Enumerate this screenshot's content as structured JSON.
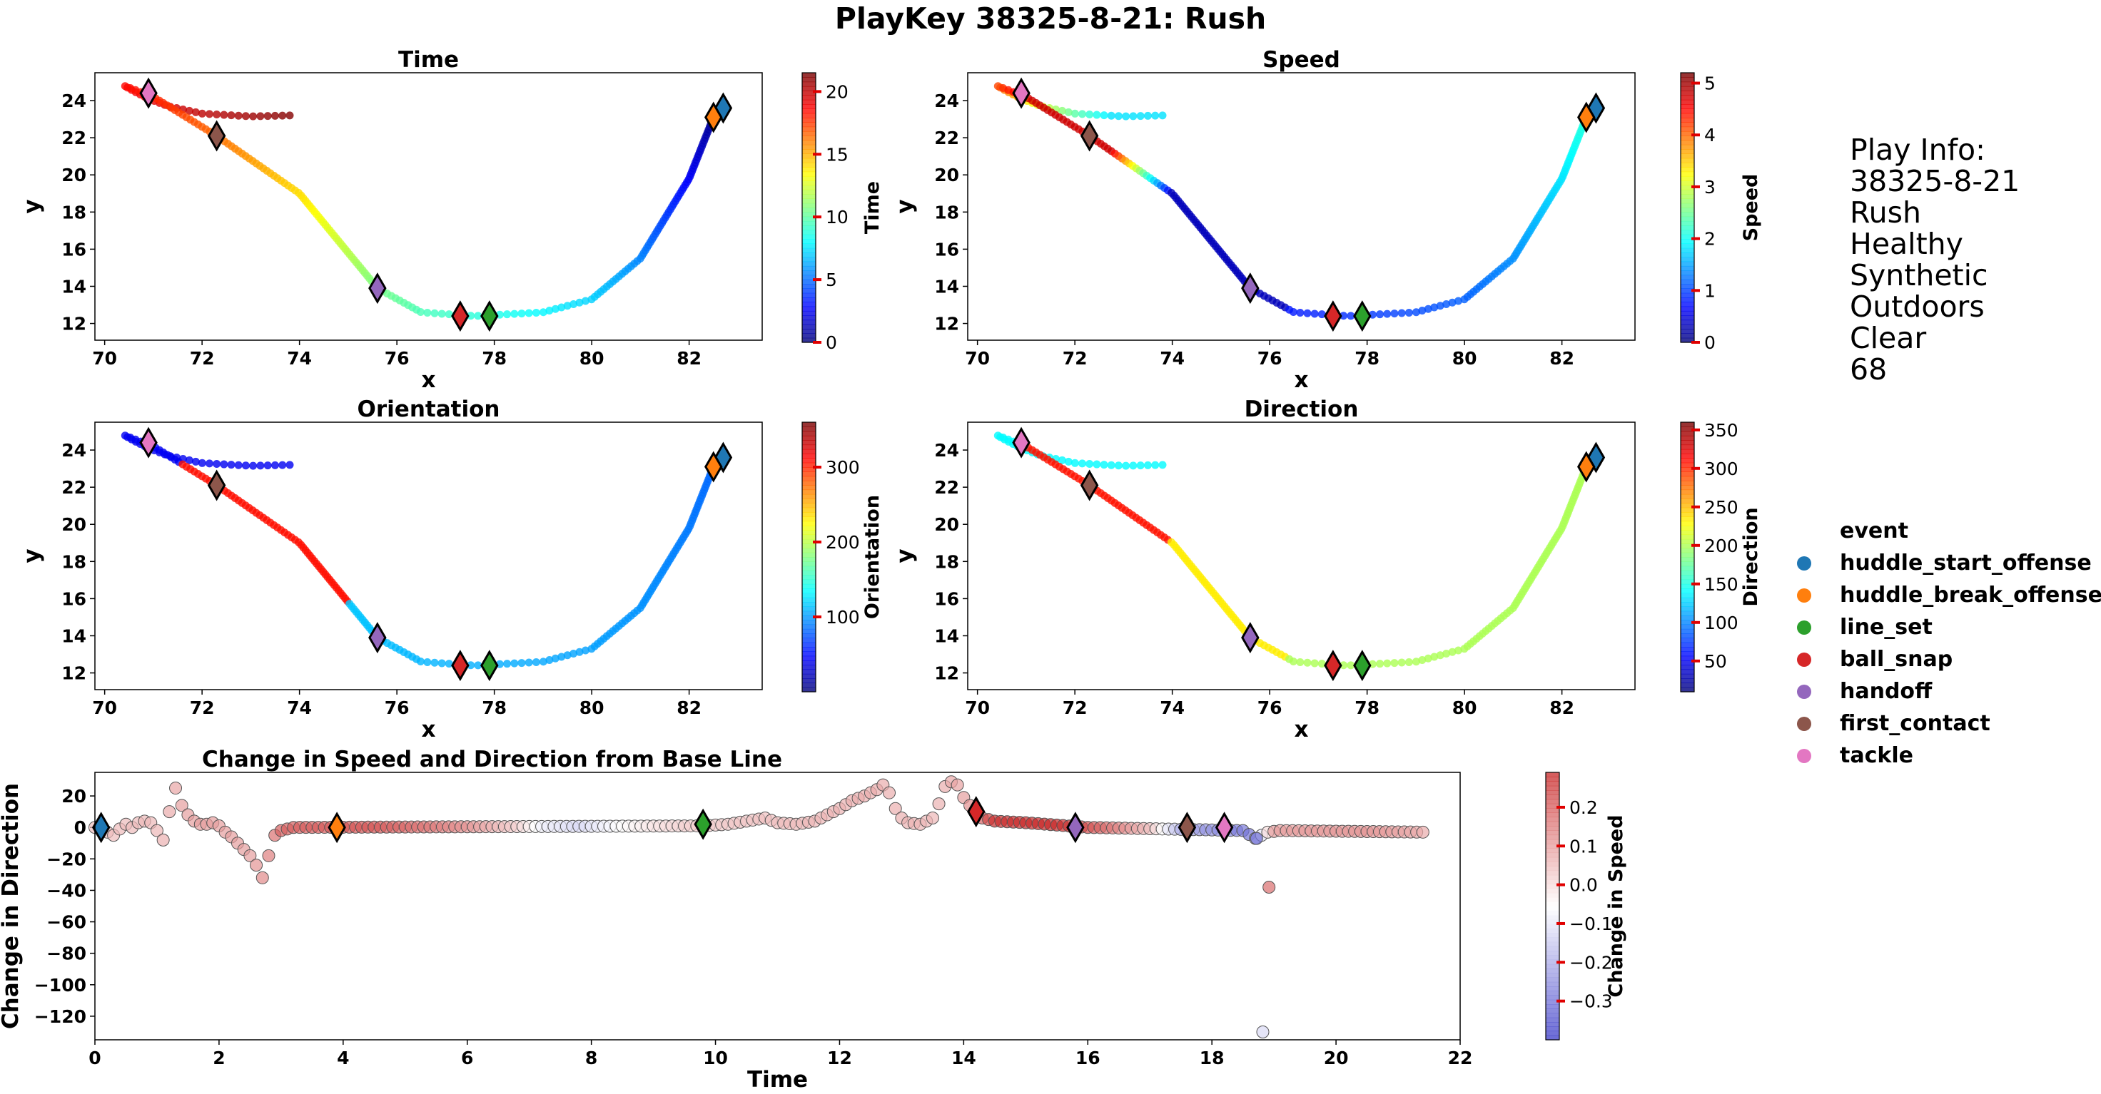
{
  "figure": {
    "title": "PlayKey 38325-8-21: Rush"
  },
  "play_info": {
    "lines": [
      "Play Info:",
      "38325-8-21",
      "Rush",
      "Healthy",
      "Synthetic",
      "Outdoors",
      "Clear",
      "68"
    ]
  },
  "legend": {
    "title": "event",
    "items": [
      {
        "label": "huddle_start_offense",
        "color": "#1f77b4"
      },
      {
        "label": "huddle_break_offense",
        "color": "#ff7f0e"
      },
      {
        "label": "line_set",
        "color": "#2ca02c"
      },
      {
        "label": "ball_snap",
        "color": "#d62728"
      },
      {
        "label": "handoff",
        "color": "#9467bd"
      },
      {
        "label": "first_contact",
        "color": "#8c564b"
      },
      {
        "label": "tackle",
        "color": "#e377c2"
      }
    ]
  },
  "chart_data": [
    {
      "type": "scatter",
      "title": "Time",
      "xlabel": "x",
      "ylabel": "y",
      "xlim": [
        69.8,
        83.5
      ],
      "ylim": [
        11.1,
        25.5
      ],
      "xticks": [
        70,
        72,
        74,
        76,
        78,
        80,
        82
      ],
      "yticks": [
        12,
        14,
        16,
        18,
        20,
        22,
        24
      ],
      "colorbar": {
        "label": "Time",
        "range": [
          0,
          21.5
        ],
        "ticks": [
          0,
          5,
          10,
          15,
          20
        ]
      },
      "color_channel": "time",
      "events": [
        {
          "x": 82.7,
          "y": 23.6,
          "event": "huddle_start_offense"
        },
        {
          "x": 82.5,
          "y": 23.1,
          "event": "huddle_break_offense"
        },
        {
          "x": 77.9,
          "y": 12.4,
          "event": "line_set"
        },
        {
          "x": 77.3,
          "y": 12.4,
          "event": "ball_snap"
        },
        {
          "x": 75.6,
          "y": 13.9,
          "event": "handoff"
        },
        {
          "x": 72.3,
          "y": 22.1,
          "event": "first_contact"
        },
        {
          "x": 70.9,
          "y": 24.4,
          "event": "tackle"
        }
      ]
    },
    {
      "type": "scatter",
      "title": "Speed",
      "xlabel": "x",
      "ylabel": "y",
      "xlim": [
        69.8,
        83.5
      ],
      "ylim": [
        11.1,
        25.5
      ],
      "xticks": [
        70,
        72,
        74,
        76,
        78,
        80,
        82
      ],
      "yticks": [
        12,
        14,
        16,
        18,
        20,
        22,
        24
      ],
      "colorbar": {
        "label": "Speed",
        "range": [
          0,
          5.2
        ],
        "ticks": [
          0,
          1,
          2,
          3,
          4,
          5
        ]
      },
      "color_channel": "speed",
      "events": [
        {
          "x": 82.7,
          "y": 23.6,
          "event": "huddle_start_offense"
        },
        {
          "x": 82.5,
          "y": 23.1,
          "event": "huddle_break_offense"
        },
        {
          "x": 77.9,
          "y": 12.4,
          "event": "line_set"
        },
        {
          "x": 77.3,
          "y": 12.4,
          "event": "ball_snap"
        },
        {
          "x": 75.6,
          "y": 13.9,
          "event": "handoff"
        },
        {
          "x": 72.3,
          "y": 22.1,
          "event": "first_contact"
        },
        {
          "x": 70.9,
          "y": 24.4,
          "event": "tackle"
        }
      ]
    },
    {
      "type": "scatter",
      "title": "Orientation",
      "xlabel": "x",
      "ylabel": "y",
      "xlim": [
        69.8,
        83.5
      ],
      "ylim": [
        11.1,
        25.5
      ],
      "xticks": [
        70,
        72,
        74,
        76,
        78,
        80,
        82
      ],
      "yticks": [
        12,
        14,
        16,
        18,
        20,
        22,
        24
      ],
      "colorbar": {
        "label": "Orientation",
        "range": [
          0,
          360
        ],
        "ticks": [
          100,
          200,
          300
        ]
      },
      "color_channel": "orientation",
      "events": [
        {
          "x": 82.7,
          "y": 23.6,
          "event": "huddle_start_offense"
        },
        {
          "x": 82.5,
          "y": 23.1,
          "event": "huddle_break_offense"
        },
        {
          "x": 77.9,
          "y": 12.4,
          "event": "line_set"
        },
        {
          "x": 77.3,
          "y": 12.4,
          "event": "ball_snap"
        },
        {
          "x": 75.6,
          "y": 13.9,
          "event": "handoff"
        },
        {
          "x": 72.3,
          "y": 22.1,
          "event": "first_contact"
        },
        {
          "x": 70.9,
          "y": 24.4,
          "event": "tackle"
        }
      ]
    },
    {
      "type": "scatter",
      "title": "Direction",
      "xlabel": "x",
      "ylabel": "y",
      "xlim": [
        69.8,
        83.5
      ],
      "ylim": [
        11.1,
        25.5
      ],
      "xticks": [
        70,
        72,
        74,
        76,
        78,
        80,
        82
      ],
      "yticks": [
        12,
        14,
        16,
        18,
        20,
        22,
        24
      ],
      "colorbar": {
        "label": "Direction",
        "range": [
          10,
          360
        ],
        "ticks": [
          50,
          100,
          150,
          200,
          250,
          300,
          350
        ]
      },
      "color_channel": "direction",
      "events": [
        {
          "x": 82.7,
          "y": 23.6,
          "event": "huddle_start_offense"
        },
        {
          "x": 82.5,
          "y": 23.1,
          "event": "huddle_break_offense"
        },
        {
          "x": 77.9,
          "y": 12.4,
          "event": "line_set"
        },
        {
          "x": 77.3,
          "y": 12.4,
          "event": "ball_snap"
        },
        {
          "x": 75.6,
          "y": 13.9,
          "event": "handoff"
        },
        {
          "x": 72.3,
          "y": 22.1,
          "event": "first_contact"
        },
        {
          "x": 70.9,
          "y": 24.4,
          "event": "tackle"
        }
      ]
    },
    {
      "type": "scatter",
      "title": "Change in Speed and Direction from Base Line",
      "xlabel": "Time",
      "ylabel": "Change in Direction",
      "xlim": [
        0,
        22
      ],
      "ylim": [
        -135,
        35
      ],
      "xticks": [
        0,
        2,
        4,
        6,
        8,
        10,
        12,
        14,
        16,
        18,
        20,
        22
      ],
      "yticks": [
        20,
        0,
        -20,
        -40,
        -60,
        -80,
        -100,
        -120
      ],
      "colorbar": {
        "label": "Change in Speed",
        "range": [
          -0.4,
          0.29
        ],
        "ticks": [
          0.2,
          0.1,
          0.0,
          -0.1,
          -0.2,
          -0.3
        ]
      },
      "events": [
        {
          "x": 0.1,
          "y": 0,
          "event": "huddle_start_offense"
        },
        {
          "x": 3.9,
          "y": 0,
          "event": "huddle_break_offense"
        },
        {
          "x": 9.8,
          "y": 2,
          "event": "line_set"
        },
        {
          "x": 14.2,
          "y": 10,
          "event": "ball_snap"
        },
        {
          "x": 15.8,
          "y": 0,
          "event": "handoff"
        },
        {
          "x": 17.6,
          "y": 0,
          "event": "first_contact"
        },
        {
          "x": 18.2,
          "y": 0,
          "event": "tackle"
        }
      ],
      "direction_anchors": [
        [
          0,
          0
        ],
        [
          0.2,
          -3
        ],
        [
          0.3,
          -5
        ],
        [
          0.4,
          -1
        ],
        [
          0.5,
          2
        ],
        [
          0.6,
          0
        ],
        [
          0.7,
          3
        ],
        [
          0.8,
          4
        ],
        [
          0.9,
          3
        ],
        [
          1.0,
          -2
        ],
        [
          1.1,
          -8
        ],
        [
          1.2,
          10
        ],
        [
          1.3,
          25
        ],
        [
          1.4,
          14
        ],
        [
          1.5,
          8
        ],
        [
          1.6,
          4
        ],
        [
          1.7,
          2
        ],
        [
          1.8,
          2
        ],
        [
          1.9,
          3
        ],
        [
          2.0,
          1
        ],
        [
          2.1,
          -3
        ],
        [
          2.2,
          -6
        ],
        [
          2.3,
          -10
        ],
        [
          2.4,
          -14
        ],
        [
          2.5,
          -18
        ],
        [
          2.6,
          -24
        ],
        [
          2.7,
          -32
        ],
        [
          2.8,
          -18
        ],
        [
          2.9,
          -5
        ],
        [
          3.0,
          -2
        ],
        [
          3.2,
          0
        ],
        [
          9.8,
          1
        ],
        [
          10.2,
          2
        ],
        [
          10.5,
          4
        ],
        [
          10.8,
          6
        ],
        [
          11.0,
          3
        ],
        [
          11.3,
          2
        ],
        [
          11.6,
          4
        ],
        [
          11.8,
          8
        ],
        [
          12.0,
          12
        ],
        [
          12.2,
          17
        ],
        [
          12.4,
          20
        ],
        [
          12.6,
          24
        ],
        [
          12.7,
          27
        ],
        [
          12.8,
          22
        ],
        [
          12.9,
          12
        ],
        [
          13.0,
          6
        ],
        [
          13.1,
          3
        ],
        [
          13.3,
          2
        ],
        [
          13.5,
          6
        ],
        [
          13.6,
          15
        ],
        [
          13.7,
          26
        ],
        [
          13.8,
          29
        ],
        [
          13.9,
          27
        ],
        [
          14.0,
          19
        ],
        [
          14.1,
          14
        ],
        [
          14.2,
          10
        ],
        [
          14.3,
          6
        ],
        [
          14.5,
          4
        ],
        [
          15.0,
          3
        ],
        [
          16.0,
          0
        ],
        [
          18.5,
          -2
        ],
        [
          18.7,
          -7
        ],
        [
          18.9,
          -3
        ],
        [
          19.1,
          -2
        ],
        [
          21.4,
          -3
        ]
      ],
      "outliers": [
        {
          "x": 18.82,
          "y": -130,
          "speed_change": -0.12
        },
        {
          "x": 18.92,
          "y": -38,
          "speed_change": 0.18
        },
        {
          "x": 18.72,
          "y": -7,
          "speed_change": -0.3
        }
      ],
      "speed_anchors": [
        [
          0,
          0.05
        ],
        [
          1.0,
          0.06
        ],
        [
          1.4,
          0.1
        ],
        [
          2.5,
          0.1
        ],
        [
          2.8,
          0.15
        ],
        [
          3.0,
          0.2
        ],
        [
          4.5,
          0.22
        ],
        [
          5.2,
          0.18
        ],
        [
          6.0,
          0.12
        ],
        [
          6.8,
          0.02
        ],
        [
          7.2,
          -0.08
        ],
        [
          7.8,
          -0.12
        ],
        [
          8.5,
          -0.05
        ],
        [
          9.5,
          0.02
        ],
        [
          10.5,
          0.04
        ],
        [
          11.5,
          0.06
        ],
        [
          12.6,
          0.08
        ],
        [
          13.5,
          0.06
        ],
        [
          14.0,
          0.1
        ],
        [
          14.2,
          0.15
        ],
        [
          14.5,
          0.28
        ],
        [
          15.5,
          0.3
        ],
        [
          16.2,
          0.2
        ],
        [
          17.0,
          0.05
        ],
        [
          17.5,
          -0.2
        ],
        [
          18.0,
          -0.25
        ],
        [
          18.6,
          -0.3
        ],
        [
          19.0,
          0.1
        ],
        [
          20.5,
          0.12
        ],
        [
          21.4,
          0.08
        ]
      ]
    }
  ]
}
